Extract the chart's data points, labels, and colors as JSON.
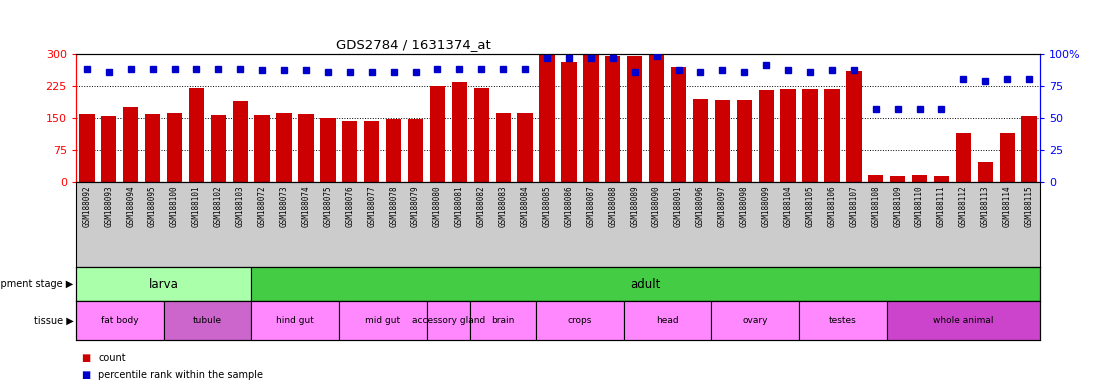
{
  "title": "GDS2784 / 1631374_at",
  "samples": [
    "GSM188092",
    "GSM188093",
    "GSM188094",
    "GSM188095",
    "GSM188100",
    "GSM188101",
    "GSM188102",
    "GSM188103",
    "GSM188072",
    "GSM188073",
    "GSM188074",
    "GSM188075",
    "GSM188076",
    "GSM188077",
    "GSM188078",
    "GSM188079",
    "GSM188080",
    "GSM188081",
    "GSM188082",
    "GSM188083",
    "GSM188084",
    "GSM188085",
    "GSM188086",
    "GSM188087",
    "GSM188088",
    "GSM188089",
    "GSM188090",
    "GSM188091",
    "GSM188096",
    "GSM188097",
    "GSM188098",
    "GSM188099",
    "GSM188104",
    "GSM188105",
    "GSM188106",
    "GSM188107",
    "GSM188108",
    "GSM188109",
    "GSM188110",
    "GSM188111",
    "GSM188112",
    "GSM188113",
    "GSM188114",
    "GSM188115"
  ],
  "counts": [
    160,
    155,
    175,
    160,
    162,
    220,
    158,
    190,
    157,
    162,
    160,
    150,
    143,
    143,
    148,
    147,
    225,
    235,
    220,
    162,
    163,
    300,
    280,
    300,
    295,
    295,
    300,
    270,
    195,
    193,
    193,
    215,
    218,
    218,
    218,
    260,
    18,
    15,
    18,
    16,
    115,
    48,
    115,
    155
  ],
  "percentile_ranks": [
    88,
    86,
    88,
    88,
    88,
    88,
    88,
    88,
    87,
    87,
    87,
    86,
    86,
    86,
    86,
    86,
    88,
    88,
    88,
    88,
    88,
    97,
    97,
    97,
    97,
    86,
    98,
    87,
    86,
    87,
    86,
    91,
    87,
    86,
    87,
    87,
    57,
    57,
    57,
    57,
    80,
    79,
    80,
    80
  ],
  "ylim_left": [
    0,
    300
  ],
  "ylim_right": [
    0,
    100
  ],
  "yticks_left": [
    0,
    75,
    150,
    225,
    300
  ],
  "yticks_right": [
    0,
    25,
    50,
    75,
    100
  ],
  "bar_color": "#cc0000",
  "dot_color": "#0000cc",
  "development_stages": [
    {
      "label": "larva",
      "start": 0,
      "end": 8,
      "color": "#aaffaa"
    },
    {
      "label": "adult",
      "start": 8,
      "end": 44,
      "color": "#44cc44"
    }
  ],
  "tissues": [
    {
      "label": "fat body",
      "start": 0,
      "end": 4,
      "color": "#ff88ff"
    },
    {
      "label": "tubule",
      "start": 4,
      "end": 8,
      "color": "#cc66cc"
    },
    {
      "label": "hind gut",
      "start": 8,
      "end": 12,
      "color": "#ff88ff"
    },
    {
      "label": "mid gut",
      "start": 12,
      "end": 16,
      "color": "#ff88ff"
    },
    {
      "label": "accessory gland",
      "start": 16,
      "end": 18,
      "color": "#ff88ff"
    },
    {
      "label": "brain",
      "start": 18,
      "end": 21,
      "color": "#ff88ff"
    },
    {
      "label": "crops",
      "start": 21,
      "end": 25,
      "color": "#ff88ff"
    },
    {
      "label": "head",
      "start": 25,
      "end": 29,
      "color": "#ff88ff"
    },
    {
      "label": "ovary",
      "start": 29,
      "end": 33,
      "color": "#ff88ff"
    },
    {
      "label": "testes",
      "start": 33,
      "end": 37,
      "color": "#ff88ff"
    },
    {
      "label": "whole animal",
      "start": 37,
      "end": 44,
      "color": "#cc44cc"
    }
  ],
  "legend_count_color": "#cc0000",
  "legend_dot_color": "#0000cc",
  "bg_color": "#ffffff",
  "label_area_color": "#cccccc"
}
